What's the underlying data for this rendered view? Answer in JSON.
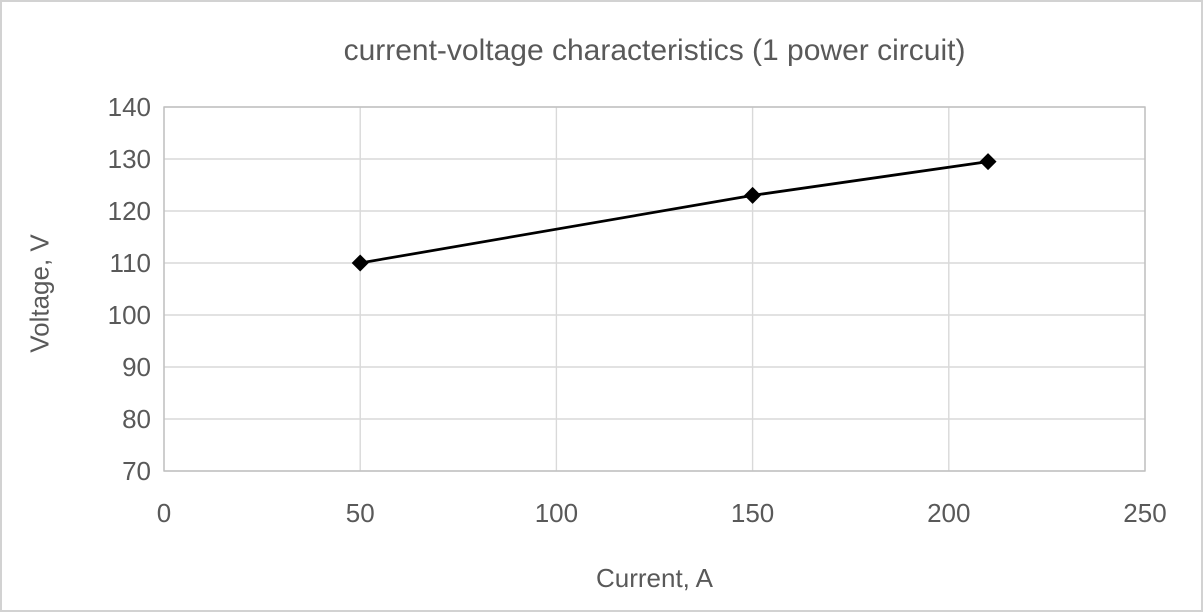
{
  "chart_data": {
    "type": "line",
    "title": "current-voltage characteristics (1 power circuit)",
    "xlabel": "Current, A",
    "ylabel": "Voltage, V",
    "series": [
      {
        "name": "current-voltage",
        "x": [
          50,
          150,
          210
        ],
        "y": [
          110,
          123,
          129.5
        ]
      }
    ],
    "xlim": [
      0,
      250
    ],
    "ylim": [
      70,
      140
    ],
    "x_ticks": [
      0,
      50,
      100,
      150,
      200,
      250
    ],
    "y_ticks": [
      70,
      80,
      90,
      100,
      110,
      120,
      130,
      140
    ],
    "grid": true,
    "legend": false,
    "marker": "diamond",
    "colors": {
      "line": "#000000",
      "marker": "#000000",
      "text": "#595959",
      "gridline": "#d9d9d9",
      "axis_line": "#bfbfbf",
      "background": "#ffffff",
      "outer_border": "#d2d2d2"
    }
  }
}
